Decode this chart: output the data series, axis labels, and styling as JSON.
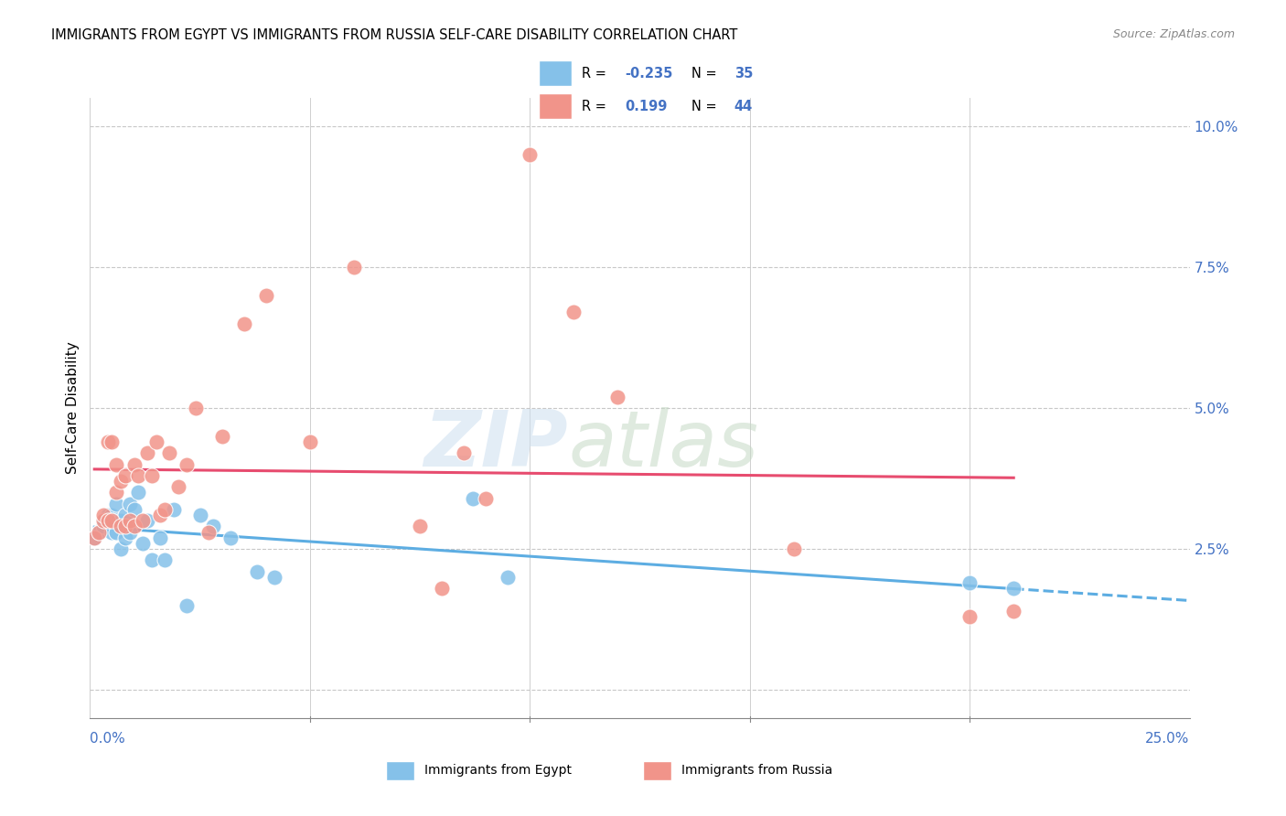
{
  "title": "IMMIGRANTS FROM EGYPT VS IMMIGRANTS FROM RUSSIA SELF-CARE DISABILITY CORRELATION CHART",
  "source": "Source: ZipAtlas.com",
  "ylabel": "Self-Care Disability",
  "xlim": [
    0.0,
    0.25
  ],
  "ylim": [
    -0.005,
    0.105
  ],
  "yticks": [
    0.0,
    0.025,
    0.05,
    0.075,
    0.1
  ],
  "ytick_labels": [
    "",
    "2.5%",
    "5.0%",
    "7.5%",
    "10.0%"
  ],
  "xticks": [
    0.0,
    0.05,
    0.1,
    0.15,
    0.2,
    0.25
  ],
  "egypt_R": -0.235,
  "egypt_N": 35,
  "russia_R": 0.199,
  "russia_N": 44,
  "egypt_color": "#85C1E9",
  "russia_color": "#F1948A",
  "egypt_line_color": "#5DADE2",
  "russia_line_color": "#E74C6F",
  "egypt_x": [
    0.001,
    0.002,
    0.003,
    0.003,
    0.004,
    0.004,
    0.005,
    0.005,
    0.005,
    0.006,
    0.006,
    0.007,
    0.007,
    0.008,
    0.008,
    0.009,
    0.009,
    0.01,
    0.011,
    0.012,
    0.013,
    0.014,
    0.016,
    0.017,
    0.019,
    0.022,
    0.025,
    0.028,
    0.032,
    0.038,
    0.042,
    0.087,
    0.095,
    0.2,
    0.21
  ],
  "egypt_y": [
    0.027,
    0.028,
    0.03,
    0.029,
    0.03,
    0.031,
    0.028,
    0.031,
    0.03,
    0.028,
    0.033,
    0.025,
    0.03,
    0.031,
    0.027,
    0.033,
    0.028,
    0.032,
    0.035,
    0.026,
    0.03,
    0.023,
    0.027,
    0.023,
    0.032,
    0.015,
    0.031,
    0.029,
    0.027,
    0.021,
    0.02,
    0.034,
    0.02,
    0.019,
    0.018
  ],
  "russia_x": [
    0.001,
    0.002,
    0.003,
    0.003,
    0.004,
    0.004,
    0.005,
    0.005,
    0.006,
    0.006,
    0.007,
    0.007,
    0.008,
    0.008,
    0.009,
    0.01,
    0.01,
    0.011,
    0.012,
    0.013,
    0.014,
    0.015,
    0.016,
    0.017,
    0.018,
    0.02,
    0.022,
    0.024,
    0.027,
    0.03,
    0.035,
    0.04,
    0.05,
    0.06,
    0.075,
    0.08,
    0.085,
    0.09,
    0.1,
    0.11,
    0.12,
    0.16,
    0.2,
    0.21
  ],
  "russia_y": [
    0.027,
    0.028,
    0.03,
    0.031,
    0.03,
    0.044,
    0.044,
    0.03,
    0.035,
    0.04,
    0.029,
    0.037,
    0.038,
    0.029,
    0.03,
    0.04,
    0.029,
    0.038,
    0.03,
    0.042,
    0.038,
    0.044,
    0.031,
    0.032,
    0.042,
    0.036,
    0.04,
    0.05,
    0.028,
    0.045,
    0.065,
    0.07,
    0.044,
    0.075,
    0.029,
    0.018,
    0.042,
    0.034,
    0.095,
    0.067,
    0.052,
    0.025,
    0.013,
    0.014
  ]
}
